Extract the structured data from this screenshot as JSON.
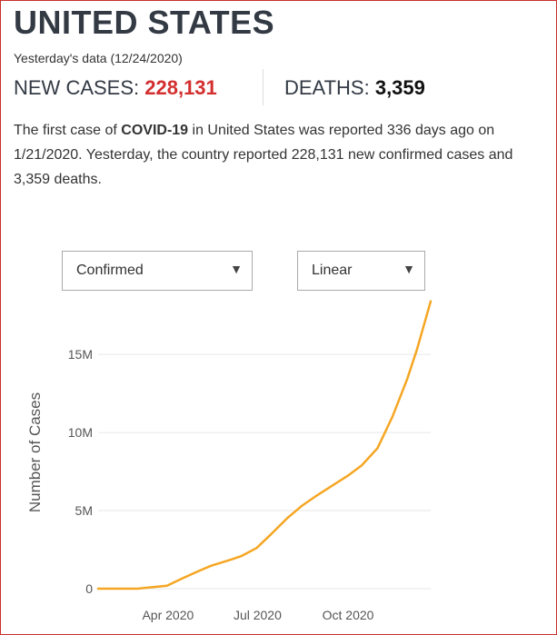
{
  "header": {
    "title": "UNITED STATES",
    "date_line": "Yesterday's data (12/24/2020)"
  },
  "stats": {
    "new_cases_label": "NEW CASES: ",
    "new_cases_value": "228,131",
    "deaths_label": "DEATHS: ",
    "deaths_value": "3,359"
  },
  "summary": {
    "part1": "The first case of ",
    "bold1": "COVID-19",
    "part2": " in ",
    "country": "United States",
    "part3": " was reported 336 days ago on 1/21/2020. Yesterday, the country reported 228,131 new confirmed cases and 3,359 deaths."
  },
  "controls": {
    "type_select": "Confirmed",
    "scale_select": "Linear",
    "caret_icon": "caret-down-icon"
  },
  "colors": {
    "accent_red": "#d32f2f",
    "line": "#f5a623",
    "title": "#333a44"
  },
  "chart_data": {
    "type": "line",
    "ylabel": "Number of Cases",
    "xlabel": "",
    "yticks": [
      {
        "value": 0,
        "label": "0"
      },
      {
        "value": 5000000,
        "label": "5M"
      },
      {
        "value": 10000000,
        "label": "10M"
      },
      {
        "value": 15000000,
        "label": "15M"
      }
    ],
    "xticks": [
      {
        "date": "2020-04-01",
        "label": "Apr 2020"
      },
      {
        "date": "2020-07-01",
        "label": "Jul 2020"
      },
      {
        "date": "2020-10-01",
        "label": "Oct 2020"
      }
    ],
    "x_range": [
      "2020-01-21",
      "2020-12-24"
    ],
    "ylim": [
      0,
      18500000
    ],
    "grid": "horizontal",
    "series": [
      {
        "points": [
          [
            "2020-01-21",
            0
          ],
          [
            "2020-03-01",
            50
          ],
          [
            "2020-03-31",
            190000
          ],
          [
            "2020-04-15",
            640000
          ],
          [
            "2020-05-01",
            1100000
          ],
          [
            "2020-05-15",
            1470000
          ],
          [
            "2020-06-01",
            1800000
          ],
          [
            "2020-06-15",
            2100000
          ],
          [
            "2020-06-30",
            2600000
          ],
          [
            "2020-07-15",
            3500000
          ],
          [
            "2020-07-31",
            4500000
          ],
          [
            "2020-08-15",
            5300000
          ],
          [
            "2020-08-31",
            6000000
          ],
          [
            "2020-09-15",
            6600000
          ],
          [
            "2020-09-30",
            7200000
          ],
          [
            "2020-10-15",
            7900000
          ],
          [
            "2020-10-31",
            9000000
          ],
          [
            "2020-11-15",
            11000000
          ],
          [
            "2020-11-30",
            13400000
          ],
          [
            "2020-12-10",
            15300000
          ],
          [
            "2020-12-24",
            18400000
          ]
        ]
      }
    ]
  }
}
